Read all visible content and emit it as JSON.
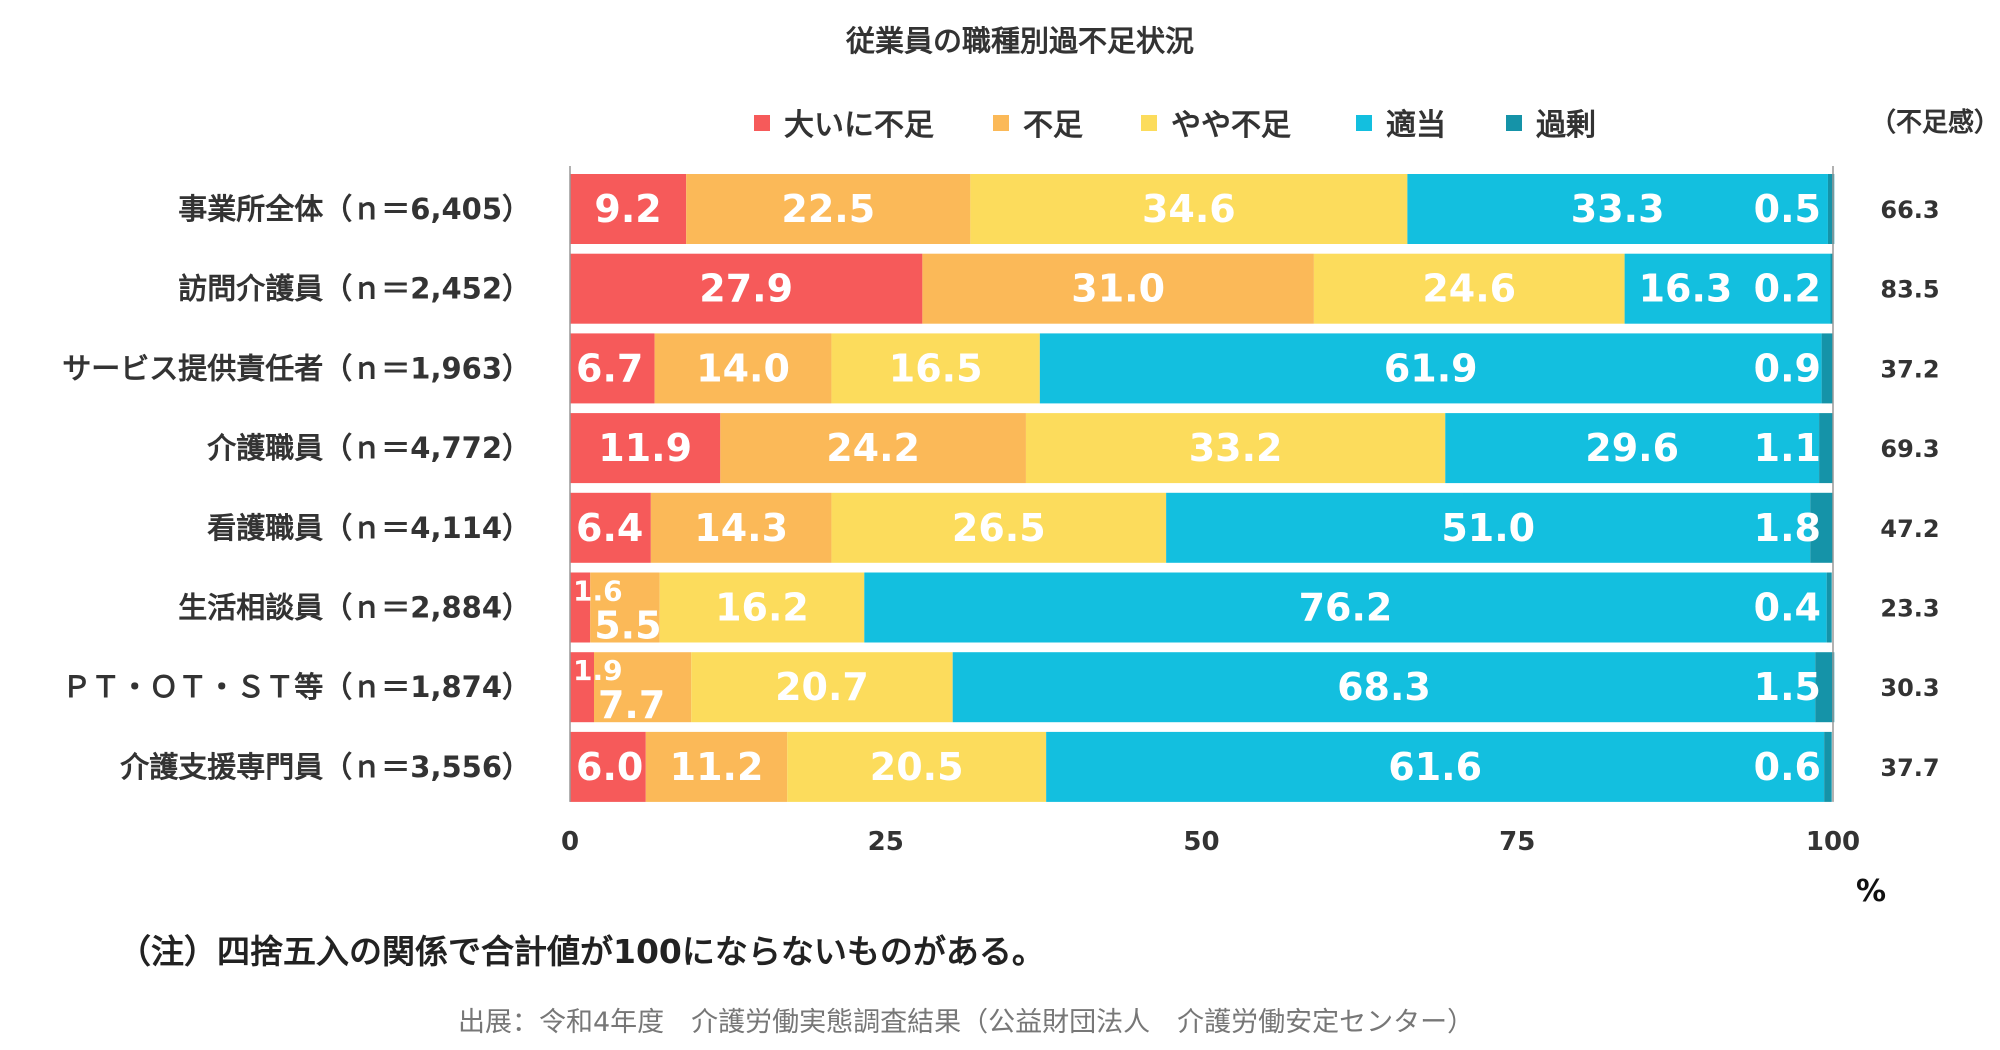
{
  "chart_data": {
    "type": "stacked-bar-horizontal",
    "title": "従業員の職種別過不足状況",
    "extra_header": "（不足感）",
    "xlabel": "%",
    "xlim": [
      0,
      100
    ],
    "xticks": [
      "0",
      "25",
      "50",
      "75",
      "100"
    ],
    "categories": [
      "事業所全体（ｎ＝6,405）",
      "訪問介護員（ｎ＝2,452）",
      "サービス提供責任者（ｎ＝1,963）",
      "介護職員（ｎ＝4,772）",
      "看護職員（ｎ＝4,114）",
      "生活相談員（ｎ＝2,884）",
      "ＰＴ・ＯＴ・ＳＴ等（ｎ＝1,874）",
      "介護支援専門員（ｎ＝3,556）"
    ],
    "series": [
      {
        "name": "大いに不足",
        "color": "#F65A5A",
        "values": [
          9.2,
          27.9,
          6.7,
          11.9,
          6.4,
          1.6,
          1.9,
          6.0
        ]
      },
      {
        "name": "不足",
        "color": "#FBB958",
        "values": [
          22.5,
          31.0,
          14.0,
          24.2,
          14.3,
          5.5,
          7.7,
          11.2
        ]
      },
      {
        "name": "やや不足",
        "color": "#FCDC5C",
        "values": [
          34.6,
          24.6,
          16.5,
          33.2,
          26.5,
          16.2,
          20.7,
          20.5
        ]
      },
      {
        "name": "適当",
        "color": "#13BFDF",
        "values": [
          33.3,
          16.3,
          61.9,
          29.6,
          51.0,
          76.2,
          68.3,
          61.6
        ]
      },
      {
        "name": "過剰",
        "color": "#1593A8",
        "values": [
          0.5,
          0.2,
          0.9,
          1.1,
          1.8,
          0.4,
          1.5,
          0.6
        ]
      }
    ],
    "shortage_sense": [
      66.3,
      83.5,
      37.2,
      69.3,
      47.2,
      23.3,
      30.3,
      37.7
    ]
  },
  "note": "（注）四捨五入の関係で合計値が100にならないものがある。",
  "source": "出展：令和4年度　介護労働実態調査結果（公益財団法人　介護労働安定センター）"
}
